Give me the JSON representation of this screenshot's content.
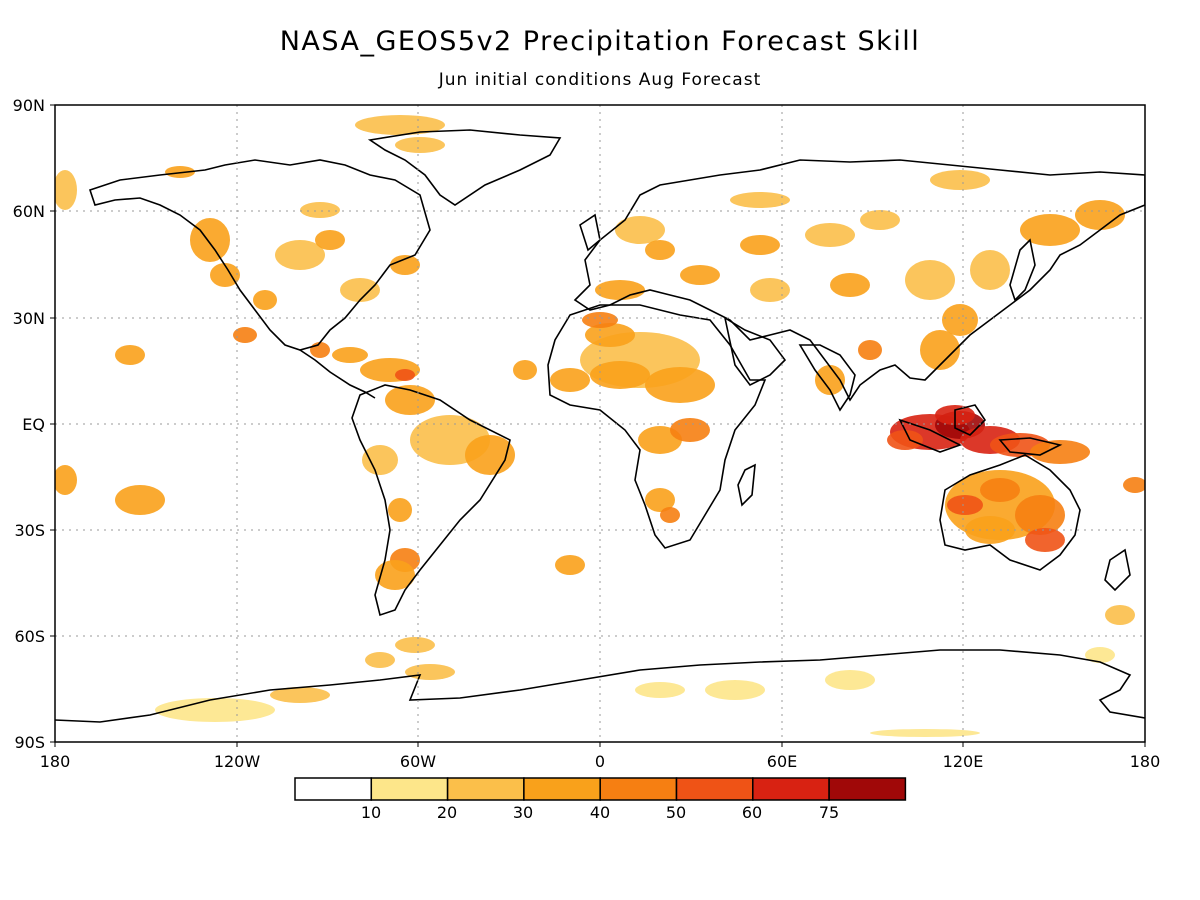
{
  "title": "NASA_GEOS5v2 Precipitation Forecast Skill",
  "subtitle": "Jun initial conditions  Aug Forecast",
  "lat_labels": [
    "90N",
    "60N",
    "30N",
    "EQ",
    "30S",
    "60S",
    "90S"
  ],
  "lon_labels": [
    "180",
    "120W",
    "60W",
    "0",
    "60E",
    "120E",
    "180"
  ],
  "colorbar": {
    "labels": [
      "10",
      "20",
      "30",
      "40",
      "50",
      "60",
      "75"
    ],
    "colors": [
      "#ffffff",
      "#fde68a",
      "#fbbf4a",
      "#f9a11b",
      "#f67f12",
      "#ef5316",
      "#d82212",
      "#a00808"
    ]
  },
  "map": {
    "land_color": "#ffffff",
    "outline_color": "#000000",
    "grid": "dotted",
    "skill_regions_color_levels": "colorbar.colors"
  }
}
